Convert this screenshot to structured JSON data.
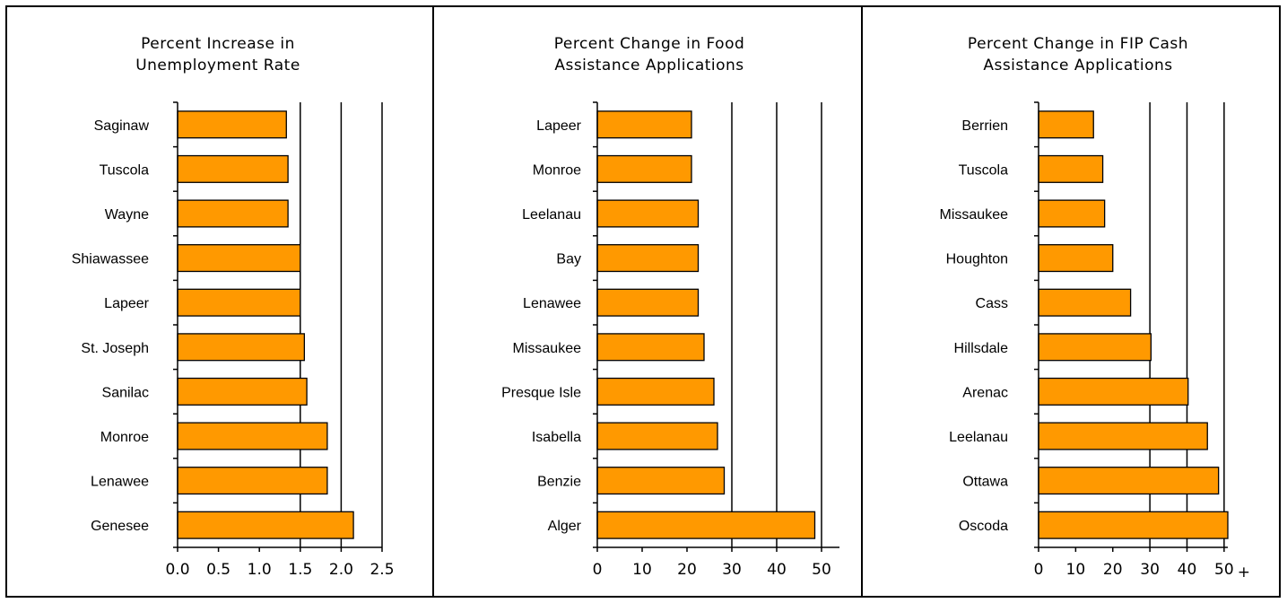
{
  "colors": {
    "bar": "#ff9900",
    "grid": "#000000"
  },
  "chart_data": [
    {
      "type": "bar",
      "orientation": "horizontal",
      "title": "Percent Increase in Unemployment Rate",
      "title_lines": [
        "Percent Increase in",
        "Unemployment Rate"
      ],
      "categories": [
        "Saginaw",
        "Tuscola",
        "Wayne",
        "Shiawassee",
        "Lapeer",
        "St. Joseph",
        "Sanilac",
        "Monroe",
        "Lenawee",
        "Genesee"
      ],
      "values": [
        1.33,
        1.35,
        1.35,
        1.5,
        1.5,
        1.55,
        1.58,
        1.83,
        1.83,
        2.15
      ],
      "xlim": [
        0,
        2.5
      ],
      "xticks": [
        "0.0",
        "0.5",
        "1.0",
        "1.5",
        "2.0",
        "2.5"
      ],
      "xtick_values": [
        0,
        0.5,
        1.0,
        1.5,
        2.0,
        2.5
      ],
      "gridlines": [
        1.5,
        2.0,
        2.5
      ],
      "xlabel": "",
      "ylabel": ""
    },
    {
      "type": "bar",
      "orientation": "horizontal",
      "title": "Percent Change in Food Assistance Applications",
      "title_lines": [
        "Percent Change in Food",
        "Assistance Applications"
      ],
      "categories": [
        "Lapeer",
        "Monroe",
        "Leelanau",
        "Bay",
        "Lenawee",
        "Missaukee",
        "Presque Isle",
        "Isabella",
        "Benzie",
        "Alger"
      ],
      "values": [
        21,
        21,
        22.5,
        22.5,
        22.5,
        23.8,
        26,
        26.8,
        28.3,
        48.5
      ],
      "xlim": [
        0,
        54
      ],
      "xticks": [
        "0",
        "10",
        "20",
        "30",
        "40",
        "50"
      ],
      "xtick_values": [
        0,
        10,
        20,
        30,
        40,
        50
      ],
      "gridlines": [
        30,
        40,
        50
      ],
      "xlabel": "",
      "ylabel": ""
    },
    {
      "type": "bar",
      "orientation": "horizontal",
      "title": "Percent Change in FIP Cash Assistance Applications",
      "title_lines": [
        "Percent Change in FIP Cash",
        "Assistance Applications"
      ],
      "categories": [
        "Berrien",
        "Tuscola",
        "Missaukee",
        "Houghton",
        "Cass",
        "Hillsdale",
        "Arenac",
        "Leelanau",
        "Ottawa",
        "Oscoda"
      ],
      "values": [
        14.8,
        17.3,
        17.8,
        20,
        24.8,
        30.3,
        40.3,
        45.5,
        48.5,
        51
      ],
      "xlim": [
        0,
        51
      ],
      "xticks": [
        "0",
        "10",
        "20",
        "30",
        "40",
        "50"
      ],
      "xtick_values": [
        0,
        10,
        20,
        30,
        40,
        50
      ],
      "xtick_suffix": "+",
      "gridlines": [
        30,
        40,
        50
      ],
      "xlabel": "",
      "ylabel": ""
    }
  ]
}
